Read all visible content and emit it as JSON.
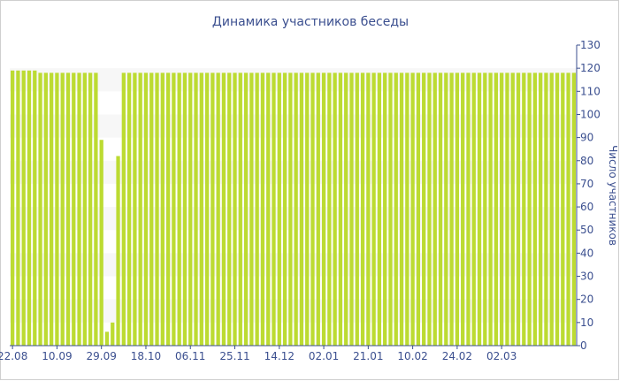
{
  "chart_data": {
    "type": "bar",
    "title": "Динамика участников беседы",
    "xlabel": "",
    "ylabel": "Число участников",
    "ylim": [
      0,
      130
    ],
    "yticks": [
      0,
      10,
      20,
      30,
      40,
      50,
      60,
      70,
      80,
      90,
      100,
      110,
      120,
      130
    ],
    "y_axis_side": "right",
    "bar_color": "#bcdb32",
    "band_color": "#f7f7f7",
    "axis_color": "#3b4f8f",
    "x_tick_labels": [
      {
        "index": 0,
        "label": "22.08"
      },
      {
        "index": 8,
        "label": "10.09"
      },
      {
        "index": 16,
        "label": "29.09"
      },
      {
        "index": 24,
        "label": "18.10"
      },
      {
        "index": 32,
        "label": "06.11"
      },
      {
        "index": 40,
        "label": "25.11"
      },
      {
        "index": 48,
        "label": "14.12"
      },
      {
        "index": 56,
        "label": "02.01"
      },
      {
        "index": 64,
        "label": "21.01"
      },
      {
        "index": 72,
        "label": "10.02"
      },
      {
        "index": 80,
        "label": "24.02"
      },
      {
        "index": 88,
        "label": "02.03"
      }
    ],
    "values": [
      119,
      119,
      119,
      119,
      119,
      118,
      118,
      118,
      118,
      118,
      118,
      118,
      118,
      118,
      118,
      118,
      89,
      6,
      10,
      82,
      118,
      118,
      118,
      118,
      118,
      118,
      118,
      118,
      118,
      118,
      118,
      118,
      118,
      118,
      118,
      118,
      118,
      118,
      118,
      118,
      118,
      118,
      118,
      118,
      118,
      118,
      118,
      118,
      118,
      118,
      118,
      118,
      118,
      118,
      118,
      118,
      118,
      118,
      118,
      118,
      118,
      118,
      118,
      118,
      118,
      118,
      118,
      118,
      118,
      118,
      118,
      118,
      118,
      118,
      118,
      118,
      118,
      118,
      118,
      118,
      118,
      118,
      118,
      118,
      118,
      118,
      118,
      118,
      118,
      118,
      118,
      118,
      118,
      118,
      118,
      118,
      118,
      118,
      118,
      118,
      118,
      118
    ]
  }
}
